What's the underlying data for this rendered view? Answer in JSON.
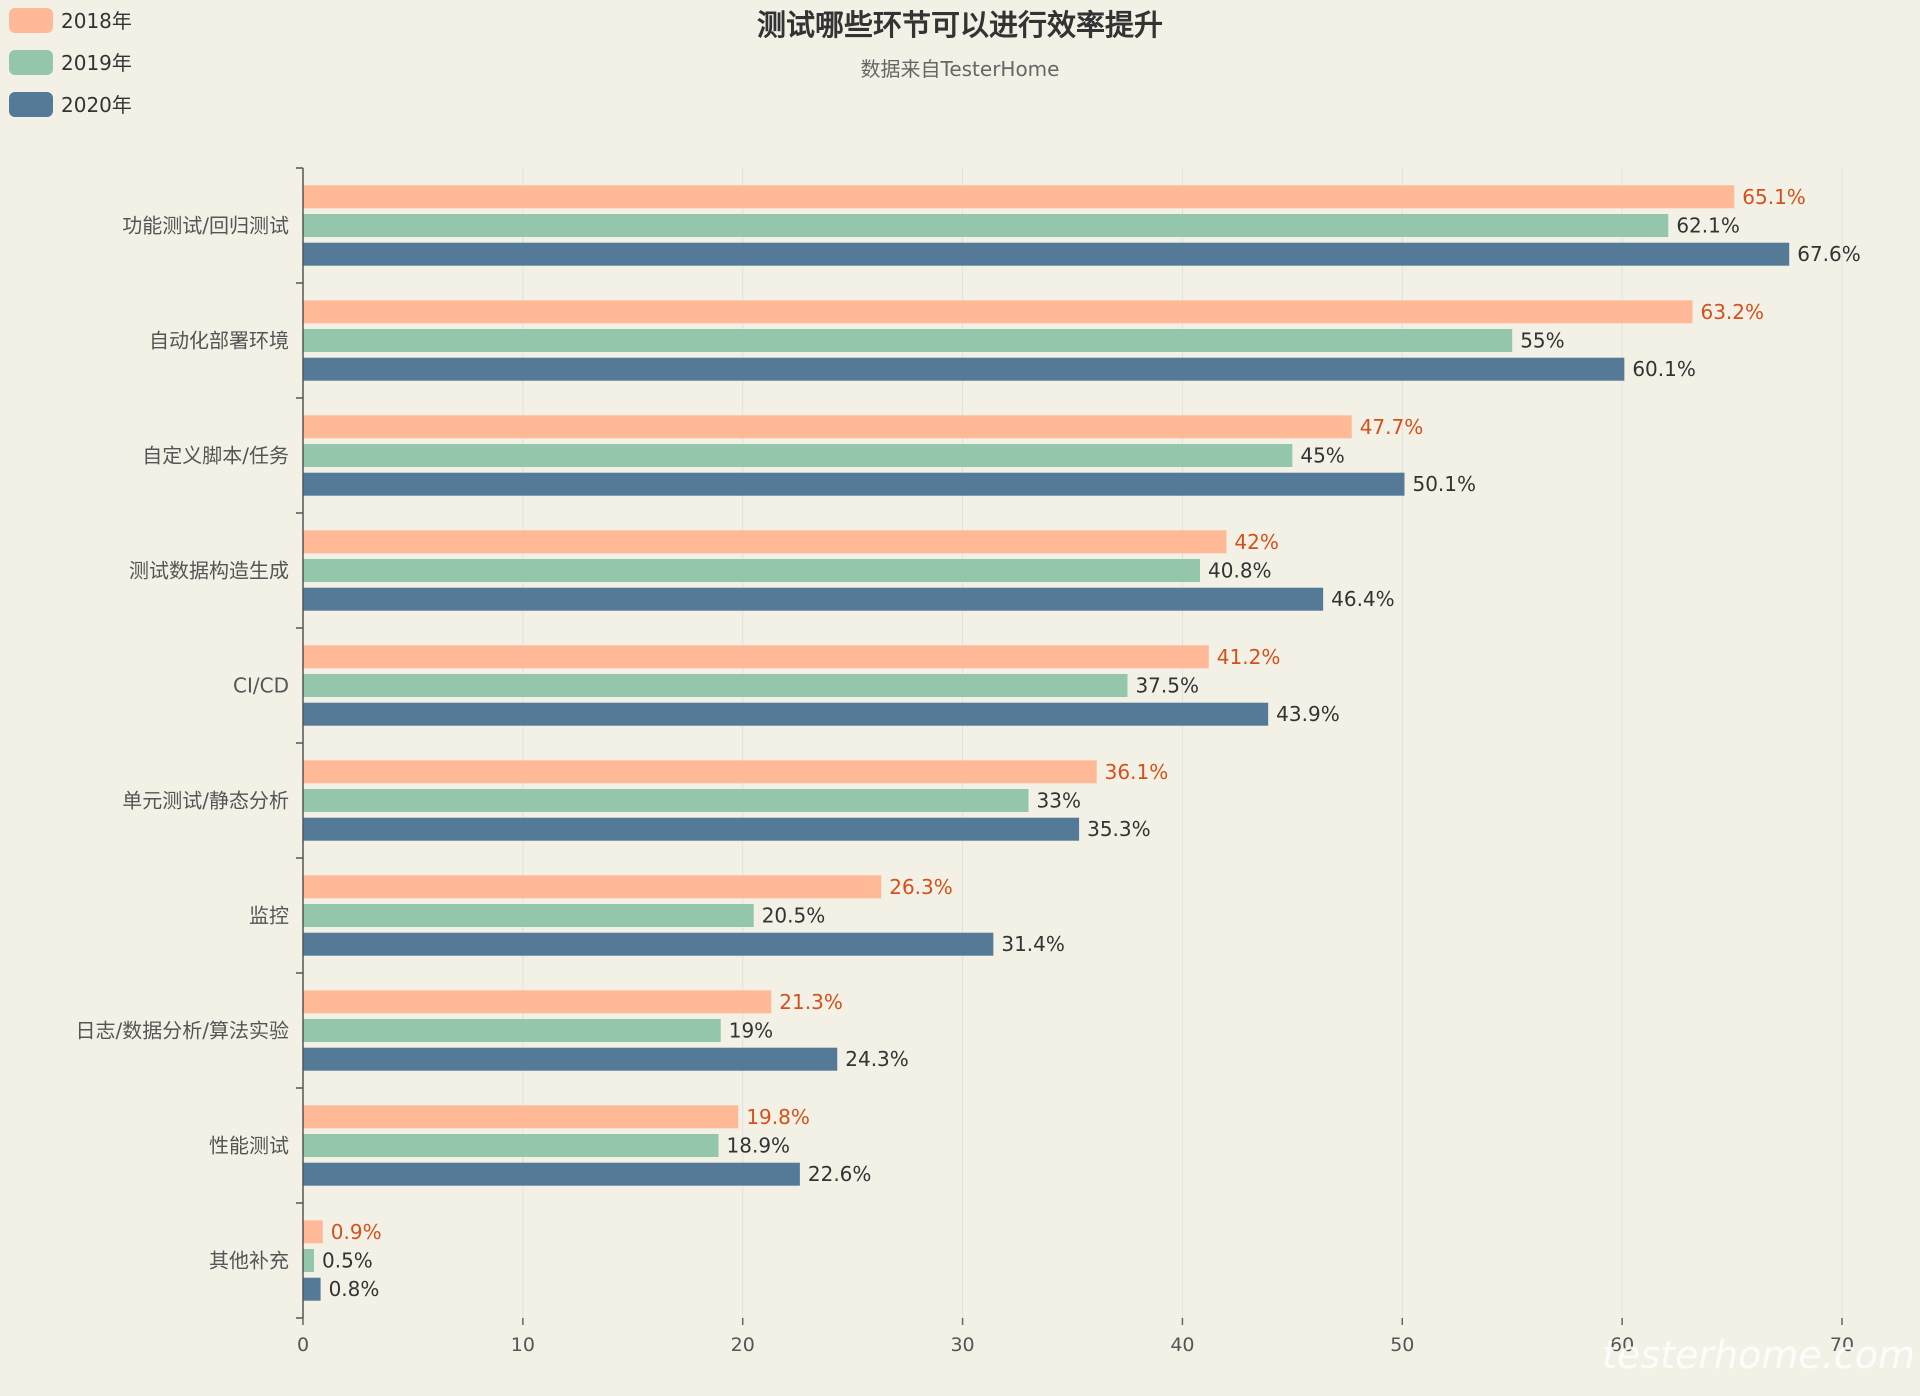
{
  "chart_data": {
    "type": "bar",
    "orientation": "horizontal",
    "title": "测试哪些环节可以进行效率提升",
    "subtitle": "数据来自TesterHome",
    "categories": [
      "功能测试/回归测试",
      "自动化部署环境",
      "自定义脚本/任务",
      "测试数据构造生成",
      "CI/CD",
      "单元测试/静态分析",
      "监控",
      "日志/数据分析/算法实验",
      "性能测试",
      "其他补充"
    ],
    "series": [
      {
        "name": "2018年",
        "color": "#ffb997",
        "values": [
          65.1,
          63.2,
          47.7,
          42,
          41.2,
          36.1,
          26.3,
          21.3,
          19.8,
          0.9
        ],
        "labels": [
          "65.1%",
          "63.2%",
          "47.7%",
          "42%",
          "41.2%",
          "36.1%",
          "26.3%",
          "21.3%",
          "19.8%",
          "0.9%"
        ]
      },
      {
        "name": "2019年",
        "color": "#93c6ab",
        "values": [
          62.1,
          55,
          45,
          40.8,
          37.5,
          33,
          20.5,
          19,
          18.9,
          0.5
        ],
        "labels": [
          "62.1%",
          "55%",
          "45%",
          "40.8%",
          "37.5%",
          "33%",
          "20.5%",
          "19%",
          "18.9%",
          "0.5%"
        ]
      },
      {
        "name": "2020年",
        "color": "#547a98",
        "values": [
          67.6,
          60.1,
          50.1,
          46.4,
          43.9,
          35.3,
          31.4,
          24.3,
          22.6,
          0.8
        ],
        "labels": [
          "67.6%",
          "60.1%",
          "50.1%",
          "46.4%",
          "43.9%",
          "35.3%",
          "31.4%",
          "24.3%",
          "22.6%",
          "0.8%"
        ]
      }
    ],
    "xlim": [
      0,
      70
    ],
    "xticks": [
      "0",
      "10",
      "20",
      "30",
      "40",
      "50",
      "60",
      "70"
    ],
    "grid": "vertical",
    "legend": "top-left"
  },
  "watermark": "testerhome.com"
}
